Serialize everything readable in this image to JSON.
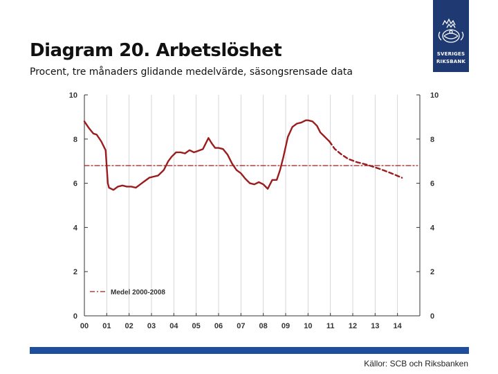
{
  "header": {
    "title": "Diagram 20. Arbetslöshet",
    "subtitle": "Procent, tre månaders glidande medelvärde, säsongsrensade data"
  },
  "logo": {
    "line1": "SVERIGES",
    "line2": "RIKSBANK",
    "color": "#1f3a73"
  },
  "footer": {
    "source": "Källor: SCB och Riksbanken",
    "bar_color": "#1f4e9c"
  },
  "chart_data": {
    "type": "line",
    "title": "",
    "xlabel": "",
    "ylabel": "",
    "ylim": [
      0,
      10
    ],
    "xlim": [
      2000,
      2015
    ],
    "x_tick_labels": [
      "00",
      "01",
      "02",
      "03",
      "04",
      "05",
      "06",
      "07",
      "08",
      "09",
      "10",
      "11",
      "12",
      "13",
      "14"
    ],
    "y_ticks": [
      0,
      2,
      4,
      6,
      8,
      10
    ],
    "grid": true,
    "colors": {
      "series": "#9b1c1c",
      "grid": "#c8ccd4"
    },
    "legend": {
      "placement": "bottom-left",
      "entries": [
        "Medel 2000-2008"
      ]
    },
    "series": [
      {
        "name": "",
        "style": "solid",
        "x": [
          2000.0,
          2000.2,
          2000.4,
          2000.55,
          2000.75,
          2000.95,
          2001.05,
          2001.1,
          2001.3,
          2001.5,
          2001.7,
          2001.9,
          2002.1,
          2002.3,
          2002.5,
          2002.7,
          2002.9,
          2003.1,
          2003.3,
          2003.55,
          2003.75,
          2003.9,
          2004.1,
          2004.3,
          2004.5,
          2004.7,
          2004.9,
          2005.05,
          2005.3,
          2005.55,
          2005.7,
          2005.85,
          2006.0,
          2006.2,
          2006.4,
          2006.6,
          2006.8,
          2007.0,
          2007.2,
          2007.4,
          2007.6,
          2007.8,
          2008.0,
          2008.2,
          2008.4,
          2008.6,
          2008.75,
          2008.9,
          2009.1,
          2009.3,
          2009.5,
          2009.7,
          2009.9,
          2010.0,
          2010.2,
          2010.4,
          2010.55,
          2010.7,
          2010.85,
          2010.95
        ],
        "y": [
          8.8,
          8.5,
          8.25,
          8.2,
          7.9,
          7.5,
          6.0,
          5.8,
          5.7,
          5.85,
          5.9,
          5.85,
          5.85,
          5.8,
          5.95,
          6.1,
          6.25,
          6.3,
          6.35,
          6.6,
          7.0,
          7.2,
          7.4,
          7.4,
          7.35,
          7.5,
          7.4,
          7.45,
          7.55,
          8.05,
          7.8,
          7.6,
          7.6,
          7.55,
          7.3,
          6.9,
          6.6,
          6.45,
          6.2,
          6.0,
          5.95,
          6.05,
          5.95,
          5.75,
          6.15,
          6.15,
          6.6,
          7.2,
          8.1,
          8.55,
          8.7,
          8.75,
          8.85,
          8.85,
          8.8,
          8.6,
          8.3,
          8.15,
          8.0,
          7.9
        ]
      },
      {
        "name": "",
        "style": "dashed",
        "x": [
          2010.95,
          2011.2,
          2011.5,
          2011.8,
          2012.2,
          2012.6,
          2013.0,
          2013.4,
          2013.8,
          2014.2
        ],
        "y": [
          7.9,
          7.55,
          7.3,
          7.1,
          6.95,
          6.85,
          6.72,
          6.58,
          6.42,
          6.25
        ]
      },
      {
        "name": "Medel 2000-2008",
        "style": "dash-dot",
        "x": [
          2000.0,
          2014.9
        ],
        "y": [
          6.8,
          6.8
        ]
      }
    ]
  }
}
